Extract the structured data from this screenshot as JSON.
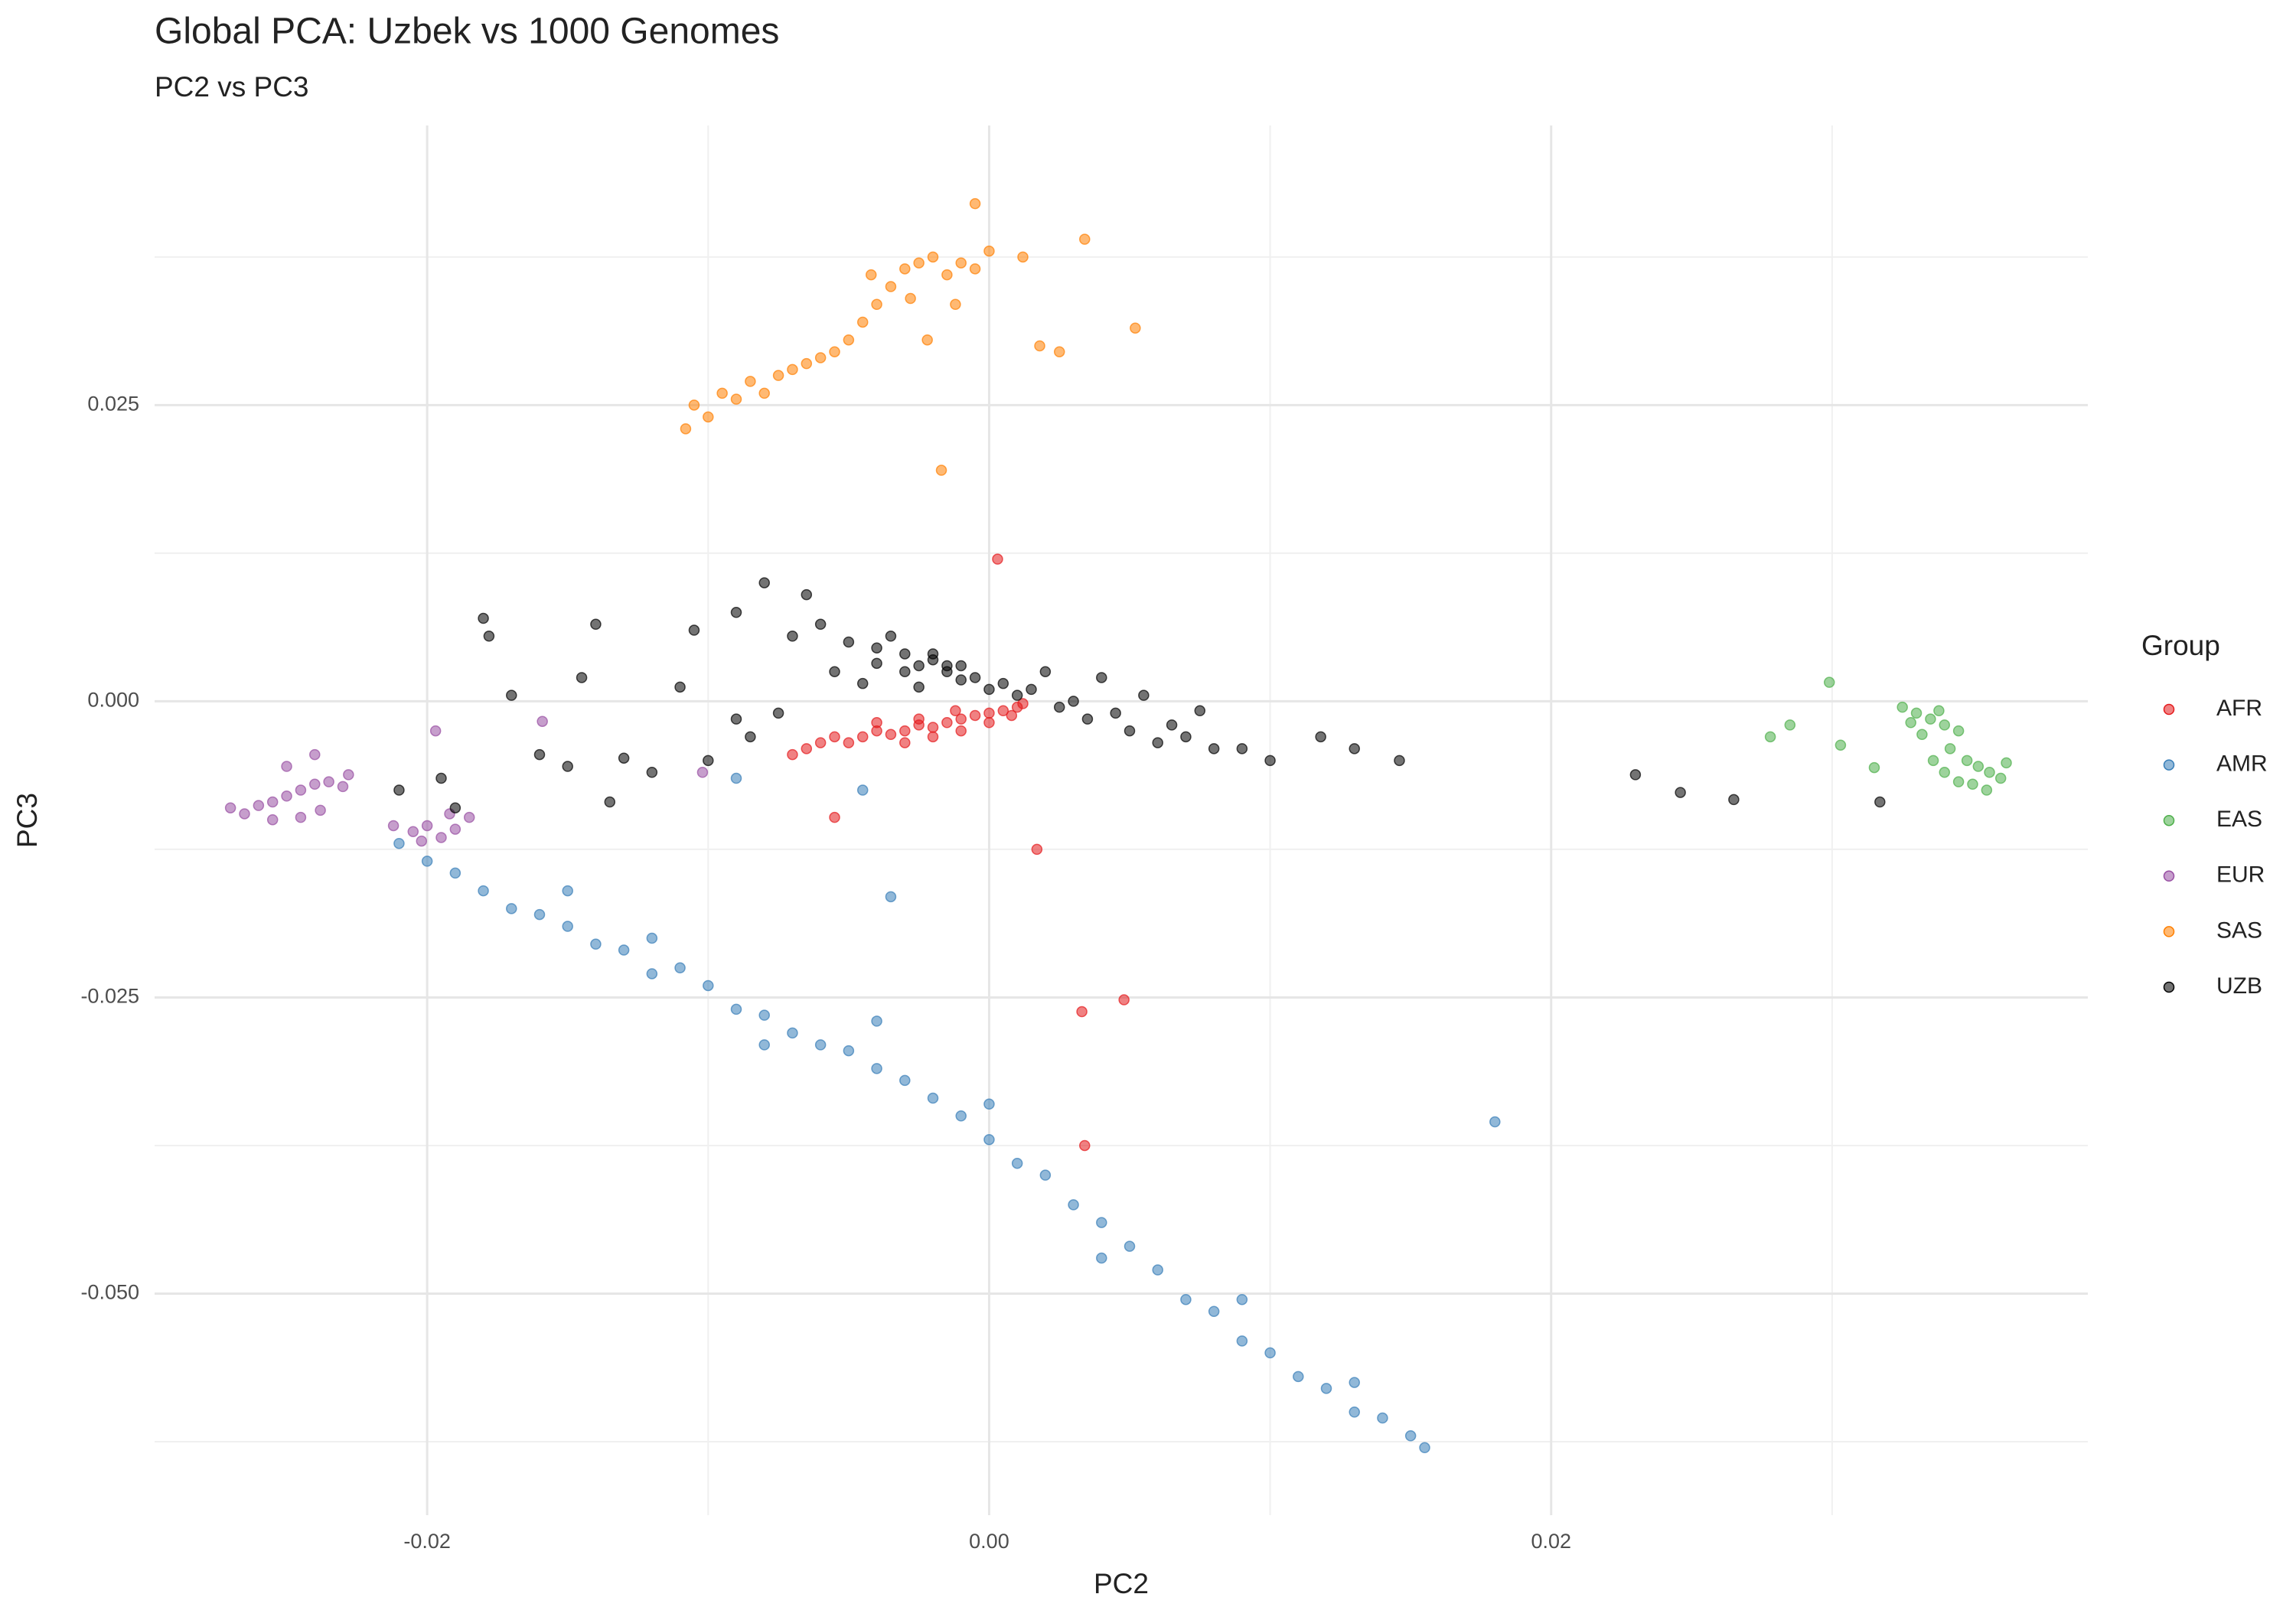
{
  "chart_data": {
    "type": "scatter",
    "title": "Global PCA: Uzbek vs 1000 Genomes",
    "subtitle": "PC2 vs PC3",
    "x_label": "PC2",
    "y_label": "PC3",
    "legend_title": "Group",
    "legend_position": "right",
    "grid": true,
    "alpha": 0.55,
    "xlim": [
      -0.0297,
      0.0391
    ],
    "ylim": [
      -0.0687,
      0.0486
    ],
    "xticks": [
      {
        "value": -0.02,
        "label": "-0.02"
      },
      {
        "value": 0,
        "label": "0.00"
      },
      {
        "value": 0.02,
        "label": "0.02"
      }
    ],
    "yticks": [
      {
        "value": -0.05,
        "label": "-0.050"
      },
      {
        "value": -0.025,
        "label": "-0.025"
      },
      {
        "value": 0,
        "label": "0.000"
      },
      {
        "value": 0.025,
        "label": "0.025"
      }
    ],
    "x_minor_grid": [
      -0.01,
      0.01,
      0.03
    ],
    "y_minor_grid": [
      -0.0625,
      -0.0375,
      -0.0125,
      0.0125,
      0.0375
    ],
    "series": [
      {
        "name": "AFR",
        "color": "#e41a1c",
        "x": [
          -0.007,
          -0.0065,
          -0.006,
          -0.0055,
          -0.005,
          -0.0045,
          -0.004,
          -0.0035,
          -0.003,
          -0.0025,
          -0.002,
          -0.0015,
          -0.001,
          -0.0005,
          0,
          0.0005,
          0.001,
          0.0012,
          -0.003,
          -0.002,
          -0.001,
          0,
          0.0008,
          -0.004,
          -0.0025,
          -0.0012,
          0.0003,
          -0.0055,
          0.0017,
          0.0033,
          0.0048,
          0.0034
        ],
        "y": [
          -0.0045,
          -0.004,
          -0.0035,
          -0.003,
          -0.0035,
          -0.003,
          -0.0025,
          -0.0028,
          -0.0025,
          -0.002,
          -0.0022,
          -0.0018,
          -0.0015,
          -0.0012,
          -0.001,
          -0.0008,
          -0.0005,
          -0.0002,
          -0.0035,
          -0.003,
          -0.0025,
          -0.0018,
          -0.0012,
          -0.0018,
          -0.0015,
          -0.0008,
          0.012,
          -0.0098,
          -0.0125,
          -0.0262,
          -0.0252,
          -0.0375
        ]
      },
      {
        "name": "AMR",
        "color": "#377eb8",
        "x": [
          -0.021,
          -0.02,
          -0.019,
          -0.018,
          -0.017,
          -0.016,
          -0.015,
          -0.014,
          -0.013,
          -0.012,
          -0.011,
          -0.01,
          -0.009,
          -0.008,
          -0.007,
          -0.006,
          -0.005,
          -0.004,
          -0.003,
          -0.002,
          -0.001,
          0,
          0.001,
          0.002,
          0.003,
          0.004,
          0.005,
          0.006,
          0.007,
          0.008,
          0.009,
          0.01,
          0.011,
          0.012,
          0.013,
          0.014,
          0.015,
          0.0155,
          -0.015,
          -0.012,
          -0.008,
          -0.004,
          0,
          0.004,
          0.009,
          0.013,
          -0.0035,
          0.018,
          -0.0045,
          -0.009
        ],
        "y": [
          -0.012,
          -0.0135,
          -0.0145,
          -0.016,
          -0.0175,
          -0.018,
          -0.019,
          -0.0205,
          -0.021,
          -0.023,
          -0.0225,
          -0.024,
          -0.026,
          -0.0265,
          -0.028,
          -0.029,
          -0.0295,
          -0.031,
          -0.032,
          -0.0335,
          -0.035,
          -0.037,
          -0.039,
          -0.04,
          -0.0425,
          -0.044,
          -0.046,
          -0.048,
          -0.0505,
          -0.0515,
          -0.054,
          -0.055,
          -0.057,
          -0.058,
          -0.06,
          -0.0605,
          -0.062,
          -0.063,
          -0.016,
          -0.02,
          -0.029,
          -0.027,
          -0.034,
          -0.047,
          -0.0505,
          -0.0575,
          -0.0165,
          -0.0355,
          -0.0075,
          -0.0065
        ]
      },
      {
        "name": "EAS",
        "color": "#4daf4a",
        "x": [
          0.0325,
          0.033,
          0.0335,
          0.034,
          0.0328,
          0.0338,
          0.0345,
          0.0332,
          0.0342,
          0.0336,
          0.0348,
          0.0352,
          0.0356,
          0.036,
          0.0345,
          0.035,
          0.0355,
          0.034,
          0.0362,
          0.0299,
          0.0285,
          0.0278,
          0.0303,
          0.0315
        ],
        "y": [
          -0.0005,
          -0.001,
          -0.0015,
          -0.002,
          -0.0018,
          -0.0008,
          -0.0025,
          -0.0028,
          -0.004,
          -0.005,
          -0.005,
          -0.0055,
          -0.006,
          -0.0065,
          -0.0068,
          -0.007,
          -0.0075,
          -0.006,
          -0.0052,
          0.0016,
          -0.002,
          -0.003,
          -0.0037,
          -0.0056
        ]
      },
      {
        "name": "EUR",
        "color": "#984ea3",
        "x": [
          -0.027,
          -0.0265,
          -0.026,
          -0.0255,
          -0.025,
          -0.0245,
          -0.024,
          -0.0235,
          -0.023,
          -0.0255,
          -0.0245,
          -0.0238,
          -0.025,
          -0.024,
          -0.0228,
          -0.0212,
          -0.0205,
          -0.02,
          -0.0195,
          -0.019,
          -0.0185,
          -0.0202,
          -0.0192,
          -0.0197,
          -0.0159,
          -0.0102
        ],
        "y": [
          -0.009,
          -0.0095,
          -0.0088,
          -0.0085,
          -0.008,
          -0.0075,
          -0.007,
          -0.0068,
          -0.0072,
          -0.01,
          -0.0098,
          -0.0092,
          -0.0055,
          -0.0045,
          -0.0062,
          -0.0105,
          -0.011,
          -0.0105,
          -0.0115,
          -0.0108,
          -0.0098,
          -0.0118,
          -0.0095,
          -0.0025,
          -0.0017,
          -0.006
        ]
      },
      {
        "name": "SAS",
        "color": "#ff7f00",
        "x": [
          -0.0108,
          -0.0105,
          -0.01,
          -0.0095,
          -0.009,
          -0.0085,
          -0.008,
          -0.0075,
          -0.007,
          -0.0065,
          -0.006,
          -0.0055,
          -0.005,
          -0.0045,
          -0.004,
          -0.0035,
          -0.003,
          -0.0025,
          -0.002,
          -0.0015,
          -0.001,
          -0.0005,
          0,
          -0.0042,
          -0.0028,
          -0.0012,
          -0.0005,
          0.0012,
          0.0018,
          0.0025,
          0.0034,
          0.0052,
          -0.0017,
          -0.0022
        ],
        "y": [
          0.023,
          0.025,
          0.024,
          0.026,
          0.0255,
          0.027,
          0.026,
          0.0275,
          0.028,
          0.0285,
          0.029,
          0.0295,
          0.0305,
          0.032,
          0.0335,
          0.035,
          0.0365,
          0.037,
          0.0375,
          0.036,
          0.037,
          0.0365,
          0.038,
          0.036,
          0.034,
          0.0335,
          0.042,
          0.0375,
          0.03,
          0.0295,
          0.039,
          0.0315,
          0.0195,
          0.0305
        ]
      },
      {
        "name": "UZB",
        "color": "#000000",
        "x": [
          -0.021,
          -0.0195,
          -0.019,
          -0.018,
          -0.0178,
          -0.017,
          -0.016,
          -0.015,
          -0.0145,
          -0.014,
          -0.013,
          -0.012,
          -0.011,
          -0.0105,
          -0.01,
          -0.009,
          -0.0085,
          -0.008,
          -0.0075,
          -0.007,
          -0.0065,
          -0.006,
          -0.0055,
          -0.005,
          -0.0045,
          -0.004,
          -0.0035,
          -0.003,
          -0.0025,
          -0.002,
          -0.0015,
          -0.001,
          -0.0005,
          0,
          0.0005,
          0.001,
          0.0015,
          0.002,
          0.0025,
          0.003,
          0.0035,
          0.004,
          0.0045,
          0.005,
          0.0055,
          0.006,
          0.0065,
          0.007,
          0.0075,
          0.008,
          0.009,
          0.01,
          0.0118,
          0.013,
          0.0146,
          0.023,
          0.0246,
          0.0265,
          0.0317,
          -0.003,
          -0.002,
          -0.001,
          -0.004,
          -0.0025,
          -0.0015,
          -0.009,
          -0.0135
        ],
        "y": [
          -0.0075,
          -0.0065,
          -0.009,
          0.007,
          0.0055,
          0.0005,
          -0.0045,
          -0.0055,
          0.002,
          0.0065,
          -0.0048,
          -0.006,
          0.0012,
          0.006,
          -0.005,
          0.0075,
          -0.003,
          0.01,
          -0.001,
          0.0055,
          0.009,
          0.0065,
          0.0025,
          0.005,
          0.0015,
          0.0045,
          0.0055,
          0.004,
          0.003,
          0.0035,
          0.0025,
          0.003,
          0.002,
          0.001,
          0.0015,
          0.0005,
          0.001,
          0.0025,
          -0.0005,
          0,
          -0.0015,
          0.002,
          -0.001,
          -0.0025,
          0.0005,
          -0.0035,
          -0.002,
          -0.003,
          -0.0008,
          -0.004,
          -0.004,
          -0.005,
          -0.003,
          -0.004,
          -0.005,
          -0.0062,
          -0.0077,
          -0.0083,
          -0.0085,
          0.0025,
          0.004,
          0.0018,
          0.0032,
          0.0012,
          0.003,
          -0.0015,
          -0.0085
        ]
      }
    ]
  }
}
